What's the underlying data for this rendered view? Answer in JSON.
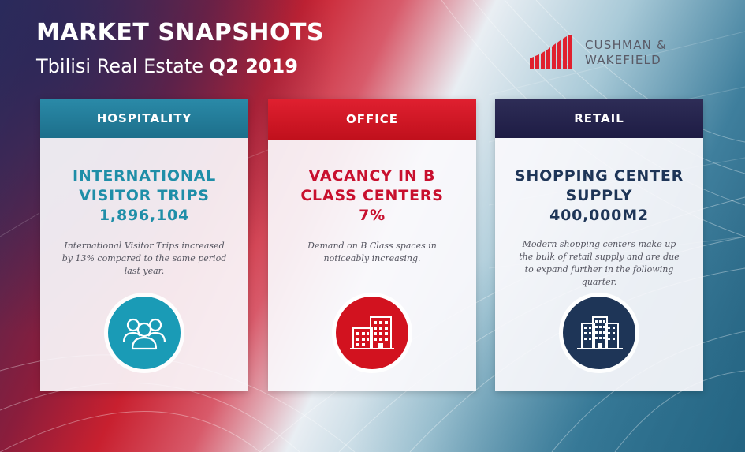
{
  "header": {
    "title": "MARKET SNAPSHOTS",
    "subtitle": "Tbilisi Real Estate",
    "quarter": "Q2 2019"
  },
  "logo": {
    "line1": "CUSHMAN &",
    "line2": "WAKEFIELD",
    "accent_color": "#e0202e"
  },
  "cards": [
    {
      "category": "HOSPITALITY",
      "headline_line1": "INTERNATIONAL",
      "headline_line2": "VISITOR TRIPS",
      "value": "1,896,104",
      "description": "International Visitor Trips increased by 13% compared to the same period last year.",
      "icon": "people-group-icon",
      "color": "#1a9bb6"
    },
    {
      "category": "OFFICE",
      "headline_line1": "VACANCY IN B",
      "headline_line2": "CLASS CENTERS",
      "value": "7%",
      "description": "Demand on B Class spaces in noticeably increasing.",
      "icon": "office-building-icon",
      "color": "#d2121f"
    },
    {
      "category": "RETAIL",
      "headline_line1": "SHOPPING CENTER",
      "headline_line2": "SUPPLY",
      "value": "400,000M2",
      "description": "Modern shopping centers make up the bulk of retail supply and are due to expand further in the following quarter.",
      "icon": "mall-building-icon",
      "color": "#1e3557"
    }
  ]
}
